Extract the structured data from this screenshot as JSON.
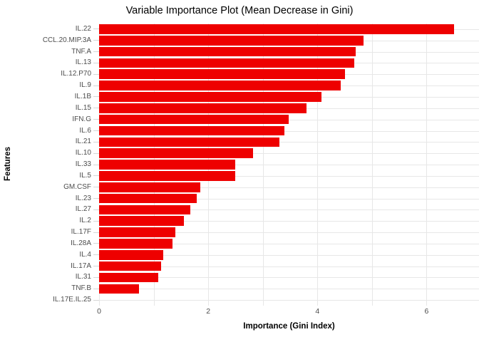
{
  "title": "Variable Importance Plot (Mean Decrease in Gini)",
  "colors": {
    "bar_fill": "#ee0000",
    "grid_line": "#e7e7e7",
    "axis_tick": "#d6d6d6",
    "axis_text": "#4d4d4d",
    "title_text": "#000000"
  },
  "chart_data": {
    "type": "bar",
    "orientation": "horizontal",
    "title": "Variable Importance Plot (Mean Decrease in Gini)",
    "xlabel": "Importance (Gini Index)",
    "ylabel": "Features",
    "xlim": [
      0,
      6.96
    ],
    "x_ticks": [
      0,
      2,
      4,
      6
    ],
    "gridlines_x": [
      0,
      1,
      2,
      3,
      4,
      5,
      6
    ],
    "grid": "on",
    "legend": "none",
    "categories": [
      "IL.22",
      "CCL.20.MIP.3A",
      "TNF.A",
      "IL.13",
      "IL.12.P70",
      "IL.9",
      "IL.1B",
      "IL.15",
      "IFN.G",
      "IL.6",
      "IL.21",
      "IL.10",
      "IL.33",
      "IL.5",
      "GM.CSF",
      "IL.23",
      "IL.27",
      "IL.2",
      "IL.17F",
      "IL.28A",
      "IL.4",
      "IL.17A",
      "IL.31",
      "TNF.B",
      "IL.17E.IL.25"
    ],
    "values": [
      6.5,
      4.85,
      4.7,
      4.67,
      4.5,
      4.43,
      4.08,
      3.8,
      3.47,
      3.39,
      3.3,
      2.82,
      2.5,
      2.49,
      1.85,
      1.79,
      1.67,
      1.56,
      1.4,
      1.34,
      1.18,
      1.13,
      1.09,
      0.73,
      0
    ]
  }
}
